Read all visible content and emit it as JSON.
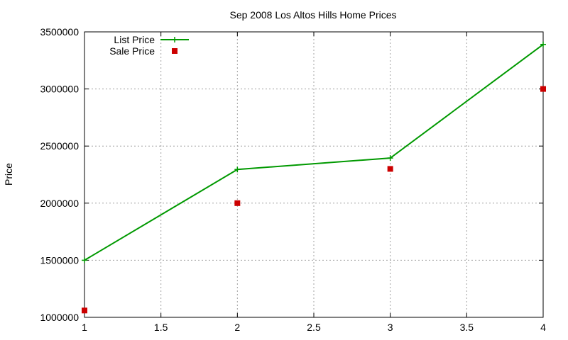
{
  "chart_data": {
    "type": "line",
    "title": "Sep 2008 Los Altos Hills Home Prices",
    "xlabel": "",
    "ylabel": "Price",
    "xlim": [
      1,
      4
    ],
    "ylim": [
      1000000,
      3500000
    ],
    "x_ticks": [
      1,
      1.5,
      2,
      2.5,
      3,
      3.5,
      4
    ],
    "x_tick_labels": [
      "1",
      "1.5",
      "2",
      "2.5",
      "3",
      "3.5",
      "4"
    ],
    "y_ticks": [
      1000000,
      1500000,
      2000000,
      2500000,
      3000000,
      3500000
    ],
    "y_tick_labels": [
      "1000000",
      "1500000",
      "2000000",
      "2500000",
      "3000000",
      "3500000"
    ],
    "grid": true,
    "legend_position": "top-left",
    "series": [
      {
        "name": "List Price",
        "style": "linespoints",
        "marker": "plus",
        "color": "#009900",
        "x": [
          1,
          2,
          3,
          4
        ],
        "y": [
          1500000,
          2295000,
          2395000,
          3390000
        ]
      },
      {
        "name": "Sale Price",
        "style": "points",
        "marker": "square",
        "color": "#cc0000",
        "x": [
          1,
          2,
          3,
          4
        ],
        "y": [
          1060000,
          2000000,
          2300000,
          3000000
        ]
      }
    ]
  }
}
